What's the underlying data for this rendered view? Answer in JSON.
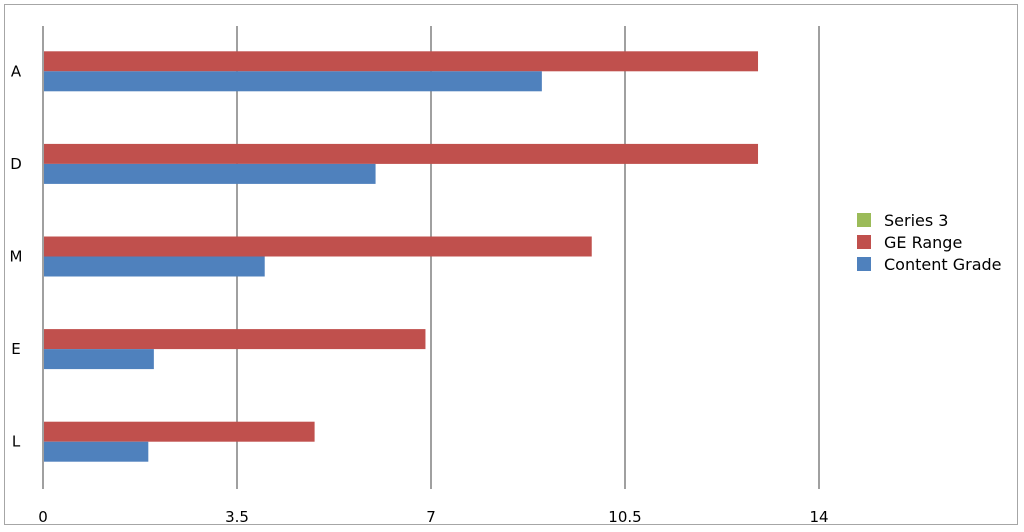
{
  "chart_data": {
    "type": "bar",
    "orientation": "horizontal",
    "categories": [
      "A",
      "D",
      "M",
      "E",
      "L"
    ],
    "series": [
      {
        "name": "Series 3",
        "color": "#9bbb59",
        "values": [
          0,
          0,
          0,
          0,
          0
        ]
      },
      {
        "name": "GE Range",
        "color": "#c0504d",
        "values": [
          12.9,
          12.9,
          9.9,
          6.9,
          4.9
        ]
      },
      {
        "name": "Content Grade",
        "color": "#4f81bd",
        "values": [
          9.0,
          6.0,
          4.0,
          2.0,
          1.9
        ]
      }
    ],
    "xticks": [
      "0",
      "3.5",
      "7",
      "10.5",
      "14"
    ],
    "xlim": [
      0,
      17.5
    ],
    "title": "",
    "xlabel": "",
    "ylabel": "",
    "grid": "vertical",
    "legend_position": "right"
  }
}
